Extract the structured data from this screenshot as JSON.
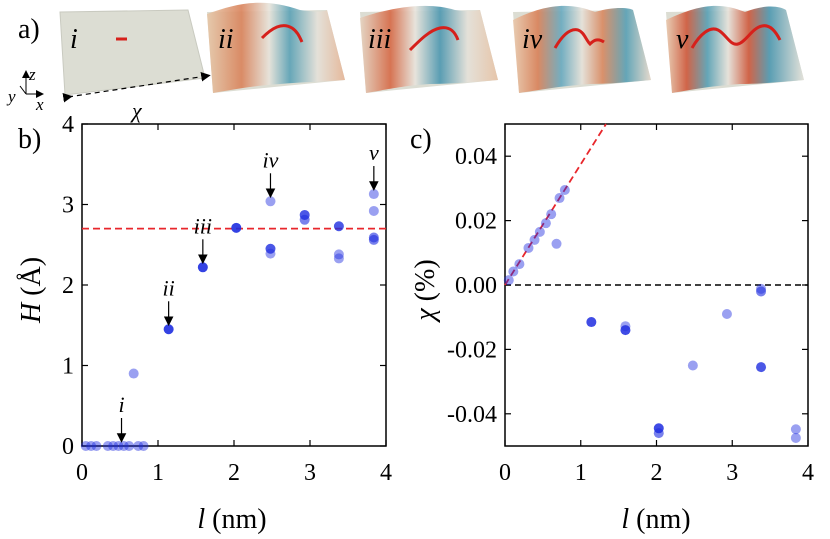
{
  "panel_a": {
    "label": "a)",
    "axes": {
      "z": "z",
      "y": "y",
      "x": "x",
      "chi": "χ"
    },
    "tiles": [
      {
        "id": "i",
        "label": "i"
      },
      {
        "id": "ii",
        "label": "ii"
      },
      {
        "id": "iii",
        "label": "iii"
      },
      {
        "id": "iv",
        "label": "iv"
      },
      {
        "id": "v",
        "label": "v"
      }
    ],
    "colors": {
      "plate": "#dcddd3",
      "red": "#d6201b",
      "warm": "#d9825a",
      "cool": "#5aa1b5"
    }
  },
  "chart_data": [
    {
      "id": "b",
      "panel_label": "b)",
      "type": "scatter",
      "xlabel_var": "l",
      "xlabel_unit": " (nm)",
      "ylabel_var": "H",
      "ylabel_unit": " (Å)",
      "xlim": [
        0,
        4
      ],
      "ylim": [
        0,
        4
      ],
      "xticks": [
        0,
        1,
        2,
        3,
        4
      ],
      "yticks": [
        0,
        1,
        2,
        3,
        4
      ],
      "reference_line": {
        "y": 2.7,
        "color": "#e8272c",
        "style": "dashed"
      },
      "points": [
        {
          "x": 0.05,
          "y": 0.0,
          "a": 0.45
        },
        {
          "x": 0.12,
          "y": 0.0,
          "a": 0.45
        },
        {
          "x": 0.19,
          "y": 0.0,
          "a": 0.45
        },
        {
          "x": 0.34,
          "y": 0.0,
          "a": 0.45
        },
        {
          "x": 0.41,
          "y": 0.0,
          "a": 0.45
        },
        {
          "x": 0.48,
          "y": 0.0,
          "a": 0.45
        },
        {
          "x": 0.55,
          "y": 0.0,
          "a": 0.45
        },
        {
          "x": 0.62,
          "y": 0.0,
          "a": 0.45
        },
        {
          "x": 0.74,
          "y": 0.0,
          "a": 0.45
        },
        {
          "x": 0.81,
          "y": 0.0,
          "a": 0.45
        },
        {
          "x": 0.68,
          "y": 0.9,
          "a": 0.45
        },
        {
          "x": 1.14,
          "y": 1.45,
          "a": 0.9
        },
        {
          "x": 1.59,
          "y": 2.22,
          "a": 0.9
        },
        {
          "x": 2.03,
          "y": 2.71,
          "a": 0.9
        },
        {
          "x": 2.48,
          "y": 3.04,
          "a": 0.45
        },
        {
          "x": 2.48,
          "y": 2.45,
          "a": 0.8
        },
        {
          "x": 2.48,
          "y": 2.39,
          "a": 0.45
        },
        {
          "x": 2.93,
          "y": 2.87,
          "a": 0.8
        },
        {
          "x": 2.93,
          "y": 2.81,
          "a": 0.6
        },
        {
          "x": 3.38,
          "y": 2.73,
          "a": 0.8
        },
        {
          "x": 3.38,
          "y": 2.38,
          "a": 0.45
        },
        {
          "x": 3.38,
          "y": 2.33,
          "a": 0.45
        },
        {
          "x": 3.84,
          "y": 3.13,
          "a": 0.45
        },
        {
          "x": 3.84,
          "y": 2.92,
          "a": 0.45
        },
        {
          "x": 3.84,
          "y": 2.59,
          "a": 0.6
        },
        {
          "x": 3.84,
          "y": 2.56,
          "a": 0.6
        }
      ],
      "annotations": [
        {
          "text": "i",
          "x": 0.52,
          "y": 0.0
        },
        {
          "text": "ii",
          "x": 1.14,
          "y": 1.45
        },
        {
          "text": "iii",
          "x": 1.59,
          "y": 2.22
        },
        {
          "text": "iv",
          "x": 2.48,
          "y": 3.04
        },
        {
          "text": "v",
          "x": 3.84,
          "y": 3.13
        }
      ]
    },
    {
      "id": "c",
      "panel_label": "c)",
      "type": "scatter",
      "xlabel_var": "l",
      "xlabel_unit": " (nm)",
      "ylabel_var": "χ",
      "ylabel_unit": " (%)",
      "xlim": [
        0,
        4
      ],
      "ylim": [
        -0.05,
        0.05
      ],
      "xticks": [
        0,
        1,
        2,
        3,
        4
      ],
      "yticks": [
        -0.04,
        -0.02,
        0.0,
        0.02,
        0.04
      ],
      "ytick_labels": [
        "-0.04",
        "-0.02",
        "0.00",
        "0.02",
        "0.04"
      ],
      "fit_line": {
        "slope": 0.0375,
        "intercept": 0.0,
        "color": "#e8272c",
        "style": "dashed"
      },
      "zero_line": {
        "y": 0.0,
        "color": "#000000",
        "style": "dashed"
      },
      "points": [
        {
          "x": 0.05,
          "y": 0.0015,
          "a": 0.45
        },
        {
          "x": 0.11,
          "y": 0.0042,
          "a": 0.45
        },
        {
          "x": 0.19,
          "y": 0.0065,
          "a": 0.45
        },
        {
          "x": 0.31,
          "y": 0.0115,
          "a": 0.45
        },
        {
          "x": 0.39,
          "y": 0.014,
          "a": 0.45
        },
        {
          "x": 0.46,
          "y": 0.0165,
          "a": 0.45
        },
        {
          "x": 0.54,
          "y": 0.0192,
          "a": 0.45
        },
        {
          "x": 0.61,
          "y": 0.022,
          "a": 0.45
        },
        {
          "x": 0.72,
          "y": 0.027,
          "a": 0.45
        },
        {
          "x": 0.79,
          "y": 0.0295,
          "a": 0.45
        },
        {
          "x": 0.68,
          "y": 0.0128,
          "a": 0.45
        },
        {
          "x": 1.14,
          "y": -0.0115,
          "a": 0.85
        },
        {
          "x": 1.59,
          "y": -0.0128,
          "a": 0.45
        },
        {
          "x": 1.59,
          "y": -0.014,
          "a": 0.85
        },
        {
          "x": 2.03,
          "y": -0.0445,
          "a": 0.85
        },
        {
          "x": 2.03,
          "y": -0.046,
          "a": 0.6
        },
        {
          "x": 2.48,
          "y": -0.025,
          "a": 0.45
        },
        {
          "x": 2.93,
          "y": -0.009,
          "a": 0.45
        },
        {
          "x": 3.38,
          "y": -0.0012,
          "a": 0.45
        },
        {
          "x": 3.38,
          "y": -0.002,
          "a": 0.6
        },
        {
          "x": 3.38,
          "y": -0.0255,
          "a": 0.8
        },
        {
          "x": 3.84,
          "y": -0.0448,
          "a": 0.45
        },
        {
          "x": 3.84,
          "y": -0.0475,
          "a": 0.45
        }
      ]
    }
  ],
  "colors": {
    "point": "#1e2de0",
    "red_dash": "#e8272c",
    "black": "#000000"
  }
}
